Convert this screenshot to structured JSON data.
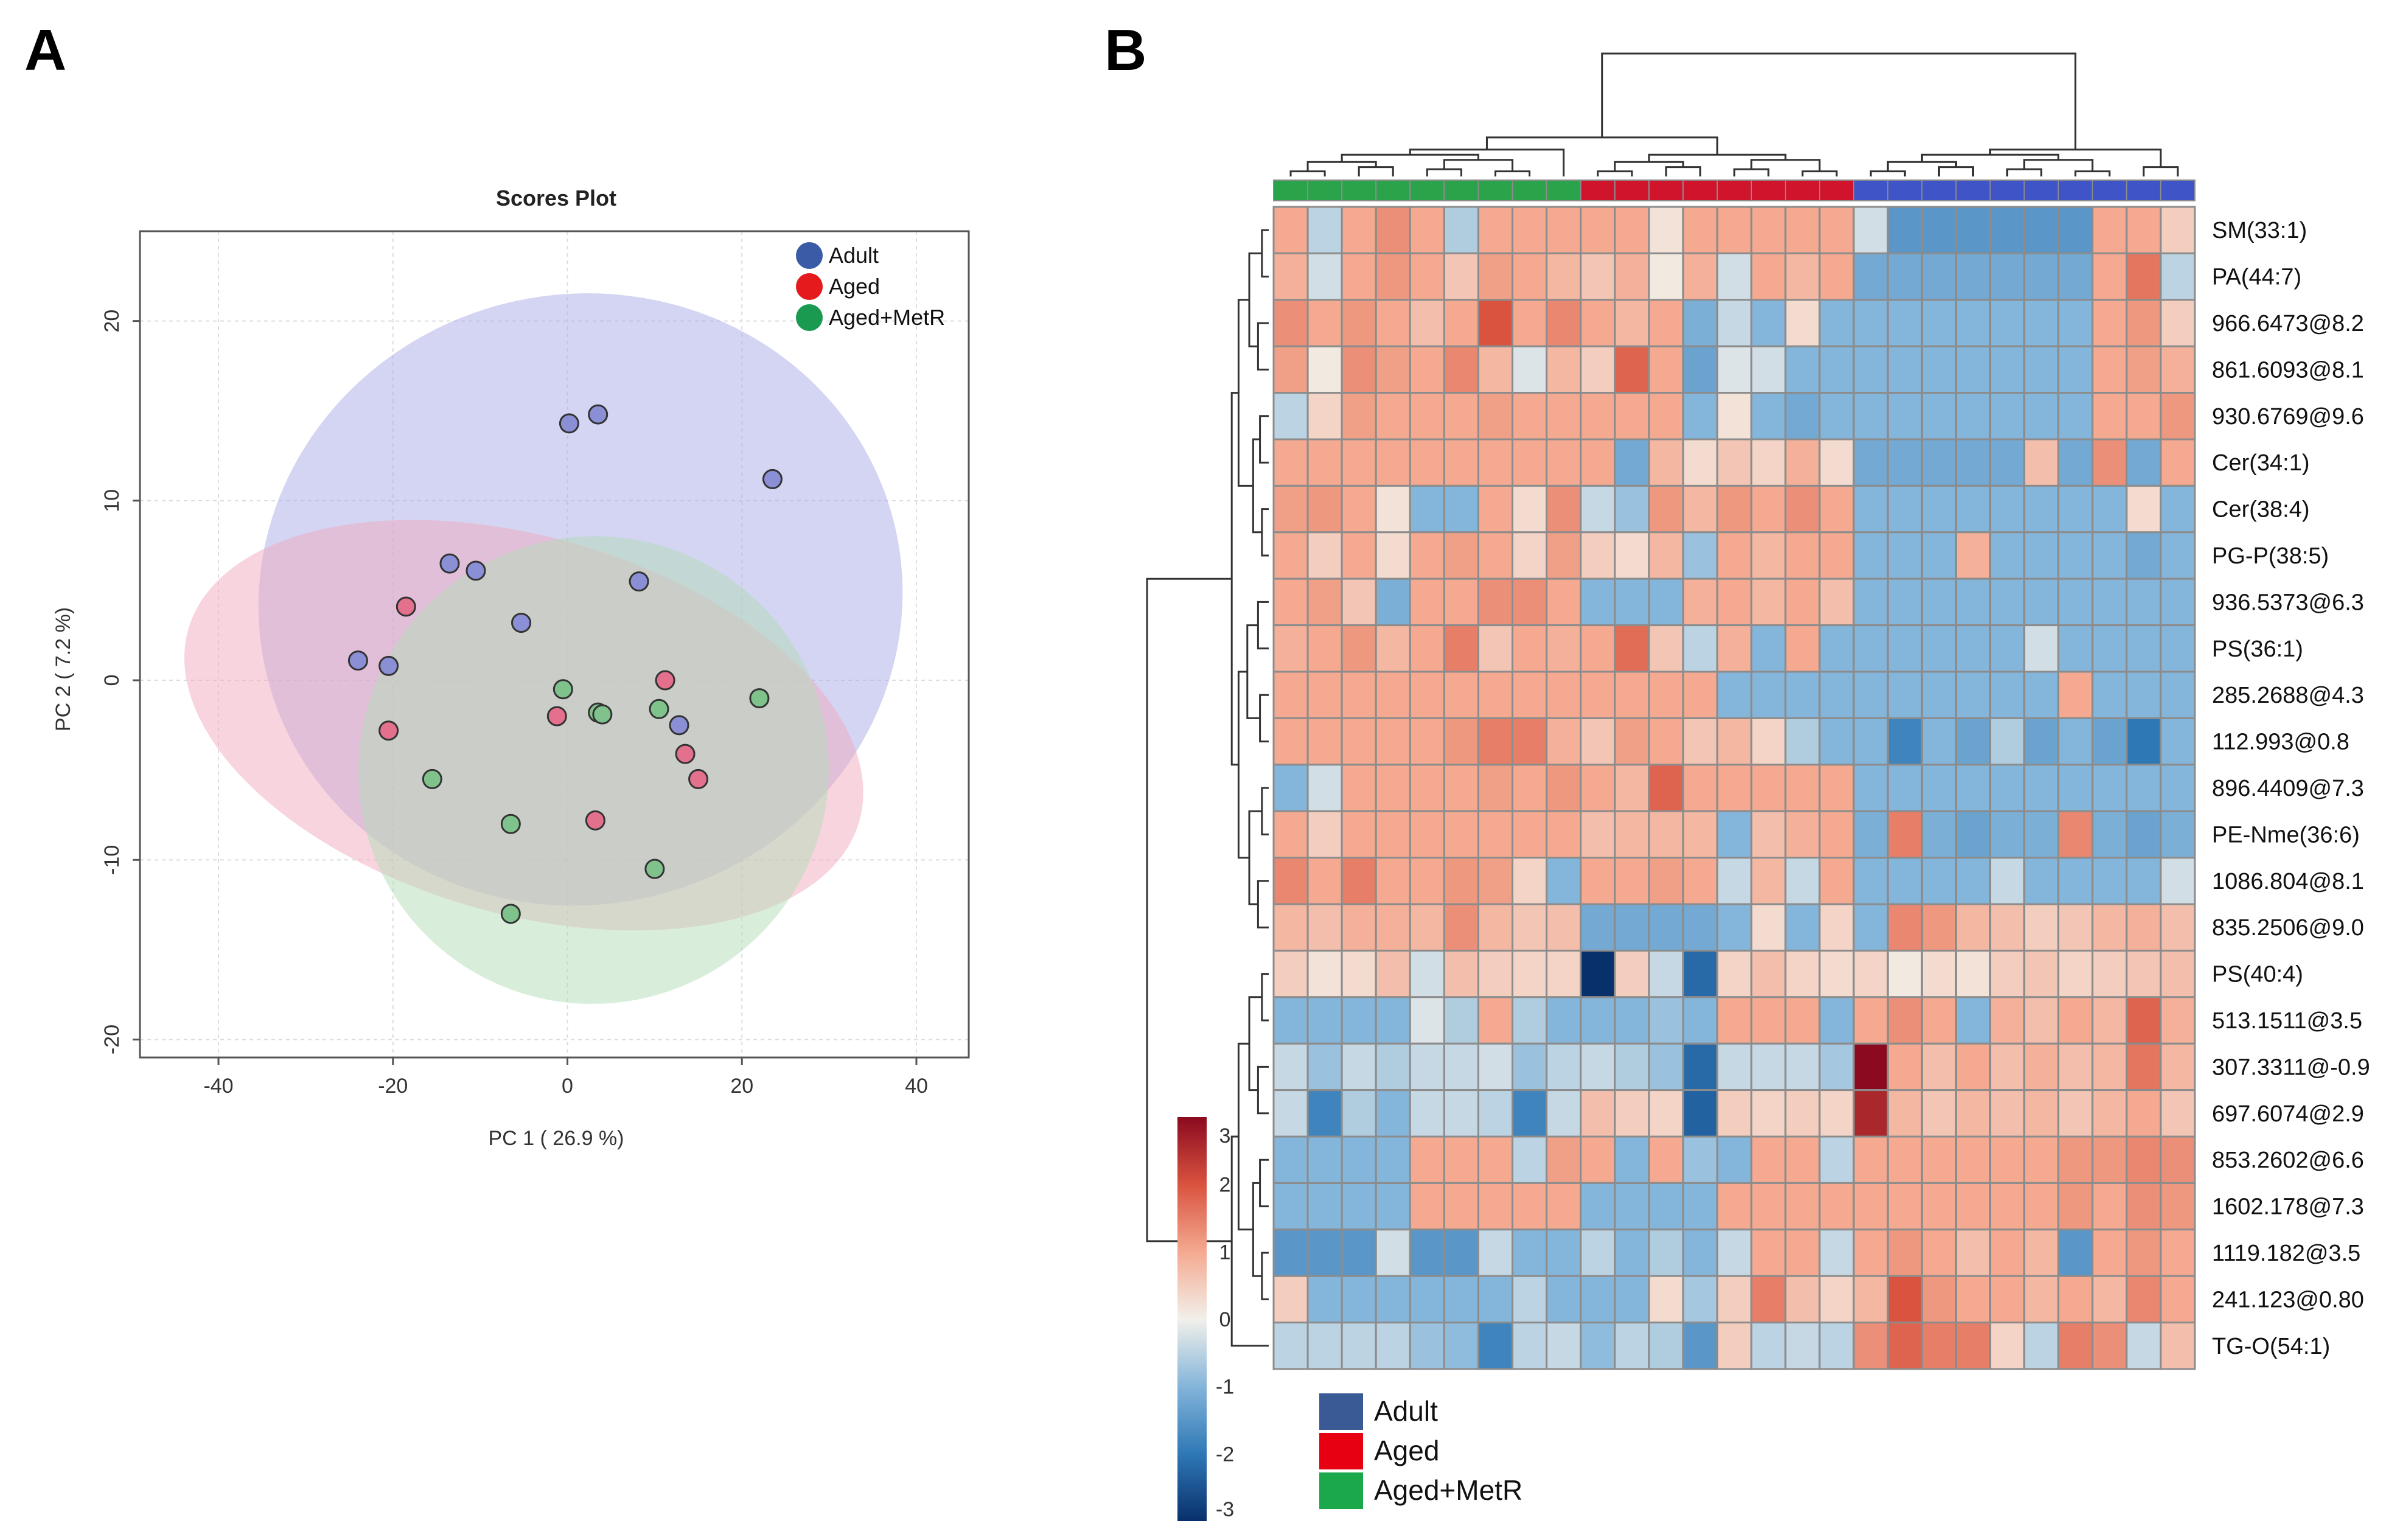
{
  "panels": {
    "a_label": "A",
    "b_label": "B"
  },
  "chart_data": [
    {
      "type": "scatter",
      "title": "Scores Plot",
      "xlabel": "PC 1 ( 26.9 %)",
      "ylabel": "PC 2 ( 7.2 %)",
      "xlim": [
        -49,
        46
      ],
      "ylim": [
        -21,
        25
      ],
      "xticks": [
        -40,
        -20,
        0,
        20,
        40
      ],
      "yticks": [
        -20,
        -10,
        0,
        10,
        20
      ],
      "grid": true,
      "legend_position": "top-right",
      "series": [
        {
          "name": "Adult",
          "color": "#3a5ba5",
          "fill": "#8b8fd6",
          "points": [
            [
              0.2,
              14.3
            ],
            [
              3.5,
              14.8
            ],
            [
              23.5,
              11.2
            ],
            [
              -13.5,
              6.5
            ],
            [
              -10.5,
              6.1
            ],
            [
              8.2,
              5.5
            ],
            [
              -5.3,
              3.2
            ],
            [
              -24,
              1.1
            ],
            [
              -20.5,
              0.8
            ],
            [
              12.8,
              -2.5
            ]
          ]
        },
        {
          "name": "Aged",
          "color": "#e41a1c",
          "fill": "#e3708c",
          "points": [
            [
              -18.5,
              4.1
            ],
            [
              11.2,
              0
            ],
            [
              -1.2,
              -2
            ],
            [
              -20.5,
              -2.8
            ],
            [
              13.5,
              -4.1
            ],
            [
              15,
              -5.5
            ],
            [
              3.2,
              -7.8
            ]
          ]
        },
        {
          "name": "Aged+MetR",
          "color": "#1a9a50",
          "fill": "#80c28c",
          "points": [
            [
              -0.5,
              -0.5
            ],
            [
              3.5,
              -1.8
            ],
            [
              4,
              -1.9
            ],
            [
              10.5,
              -1.6
            ],
            [
              22,
              -1
            ],
            [
              -15.5,
              -5.5
            ],
            [
              -6.5,
              -8
            ],
            [
              10,
              -10.5
            ],
            [
              -6.5,
              -13
            ]
          ]
        }
      ],
      "ellipses": [
        {
          "series": "Adult",
          "center": [
            1.5,
            4.5
          ],
          "rx": 37,
          "ry": 17,
          "angle_deg": 12,
          "fill": "#a8abe6"
        },
        {
          "series": "Aged",
          "center": [
            -5,
            -2.5
          ],
          "rx": 40,
          "ry": 10.5,
          "angle_deg": -16,
          "fill": "#f2a9c0"
        },
        {
          "series": "Aged+MetR",
          "center": [
            3,
            -5
          ],
          "rx": 27,
          "ry": 13,
          "angle_deg": 22,
          "fill": "#b4dcb8"
        }
      ]
    },
    {
      "type": "heatmap",
      "rows": [
        "SM(33:1)",
        "PA(44:7)",
        "966.6473@8.2",
        "861.6093@8.1",
        "930.6769@9.6",
        "Cer(34:1)",
        "Cer(38:4)",
        "PG-P(38:5)",
        "936.5373@6.3",
        "PS(36:1)",
        "285.2688@4.3",
        "112.993@0.8",
        "896.4409@7.3",
        "PE-Nme(36:6)",
        "1086.804@8.1",
        "835.2506@9.0",
        "PS(40:4)",
        "513.1511@3.5",
        "307.3311@-0.9",
        "697.6074@2.9",
        "853.2602@6.6",
        "1602.178@7.3",
        "1119.182@3.5",
        "241.123@0.80",
        "TG-O(54:1)"
      ],
      "column_groups": [
        "Aged+MetR",
        "Aged+MetR",
        "Aged+MetR",
        "Aged+MetR",
        "Aged+MetR",
        "Aged+MetR",
        "Aged+MetR",
        "Aged+MetR",
        "Aged+MetR",
        "Aged",
        "Aged",
        "Aged",
        "Aged",
        "Aged",
        "Aged",
        "Aged",
        "Aged",
        "Adult",
        "Adult",
        "Adult",
        "Adult",
        "Adult",
        "Adult",
        "Adult",
        "Adult",
        "Adult",
        "Adult"
      ],
      "group_colors": {
        "Adult": "#3f54c7",
        "Aged": "#d0142c",
        "Aged+MetR": "#2aa34a"
      },
      "colorbar": {
        "min": -3,
        "max": 3,
        "ticks": [
          "3",
          "2",
          "1",
          "0",
          "-1",
          "-2",
          "-3"
        ]
      },
      "values": [
        [
          1.0,
          -0.5,
          1.0,
          1.3,
          1.0,
          -0.6,
          1.0,
          1.0,
          1.0,
          1.0,
          1.0,
          0.2,
          1.0,
          1.0,
          1.0,
          1.0,
          1.0,
          -0.3,
          -1.5,
          -1.5,
          -1.5,
          -1.5,
          -1.5,
          -1.5,
          1.0,
          1.0,
          0.5
        ],
        [
          0.9,
          -0.3,
          1.0,
          1.2,
          1.0,
          0.6,
          1.1,
          1.0,
          0.8,
          0.6,
          0.9,
          0.1,
          0.9,
          -0.3,
          1.0,
          0.8,
          1.0,
          -1.2,
          -1.2,
          -1.2,
          -1.2,
          -1.2,
          -1.2,
          -1.2,
          1.0,
          1.6,
          -0.5
        ],
        [
          1.3,
          1.0,
          1.2,
          1.0,
          0.7,
          1.0,
          2.0,
          1.0,
          1.4,
          1.0,
          0.8,
          1.0,
          -1.1,
          -0.4,
          -1.0,
          0.3,
          -1.0,
          -1.0,
          -1.0,
          -1.0,
          -1.0,
          -1.0,
          -1.0,
          -1.0,
          1.0,
          1.2,
          0.5
        ],
        [
          1.1,
          0.1,
          1.3,
          1.1,
          1.0,
          1.4,
          0.8,
          -0.2,
          0.8,
          0.5,
          1.8,
          1.0,
          -1.3,
          -0.2,
          -0.3,
          -1.0,
          -1.0,
          -1.0,
          -1.0,
          -1.0,
          -1.0,
          -1.0,
          -1.0,
          -1.0,
          1.0,
          1.1,
          0.9
        ],
        [
          -0.5,
          0.4,
          1.1,
          1.0,
          1.0,
          1.0,
          1.1,
          1.0,
          1.0,
          1.0,
          1.0,
          1.0,
          -1.0,
          0.2,
          -1.0,
          -1.2,
          -1.0,
          -1.0,
          -1.0,
          -1.0,
          -1.0,
          -1.0,
          -1.0,
          -1.0,
          1.0,
          1.0,
          1.2
        ],
        [
          1.0,
          1.0,
          1.0,
          1.0,
          1.0,
          1.0,
          1.0,
          1.0,
          1.0,
          1.0,
          -1.2,
          0.8,
          0.3,
          0.6,
          0.4,
          0.9,
          0.3,
          -1.2,
          -1.2,
          -1.2,
          -1.2,
          -1.2,
          0.7,
          -1.2,
          1.3,
          -1.2,
          1.0
        ],
        [
          1.1,
          1.2,
          1.0,
          0.2,
          -1.0,
          -1.0,
          1.0,
          0.3,
          1.3,
          -0.4,
          -0.8,
          1.2,
          0.8,
          1.2,
          1.0,
          1.3,
          1.0,
          -1.0,
          -1.0,
          -1.0,
          -1.0,
          -1.0,
          -1.0,
          -1.0,
          -1.0,
          0.3,
          -1.0
        ],
        [
          1.0,
          0.5,
          1.0,
          0.3,
          1.0,
          1.1,
          1.0,
          0.4,
          1.1,
          0.5,
          0.3,
          0.8,
          -0.8,
          1.0,
          0.8,
          1.0,
          1.0,
          -1.0,
          -1.0,
          -1.0,
          0.9,
          -1.0,
          -1.0,
          -1.0,
          -1.0,
          -1.2,
          -1.0
        ],
        [
          1.0,
          1.1,
          0.6,
          -1.1,
          1.0,
          1.0,
          1.3,
          1.3,
          1.0,
          -1.0,
          -1.0,
          -1.0,
          0.9,
          1.0,
          0.8,
          1.0,
          0.7,
          -1.0,
          -1.0,
          -1.0,
          -1.0,
          -1.0,
          -1.0,
          -1.0,
          -1.0,
          -1.0,
          -1.0
        ],
        [
          0.9,
          1.0,
          1.2,
          0.8,
          1.0,
          1.5,
          0.6,
          1.0,
          0.9,
          1.0,
          1.7,
          0.6,
          -0.5,
          0.9,
          -1.0,
          1.0,
          -1.0,
          -1.0,
          -1.0,
          -1.0,
          -1.0,
          -1.0,
          -0.3,
          -1.0,
          -1.0,
          -1.0,
          -1.0
        ],
        [
          1.0,
          1.0,
          1.0,
          1.0,
          1.0,
          1.0,
          1.0,
          1.0,
          1.0,
          1.0,
          1.0,
          1.0,
          1.0,
          -1.0,
          -1.0,
          -1.0,
          -1.0,
          -1.0,
          -1.0,
          -1.0,
          -1.0,
          -1.0,
          -1.0,
          1.0,
          -1.0,
          -1.0,
          -1.0
        ],
        [
          1.0,
          1.0,
          1.0,
          1.0,
          1.0,
          1.2,
          1.5,
          1.5,
          0.9,
          0.6,
          1.1,
          1.0,
          0.6,
          0.8,
          0.4,
          -0.6,
          -1.0,
          -1.0,
          -1.8,
          -1.0,
          -1.3,
          -0.6,
          -1.3,
          -1.0,
          -1.3,
          -2.0,
          -1.0
        ],
        [
          -1.0,
          -0.3,
          1.0,
          1.0,
          1.0,
          1.0,
          1.1,
          1.0,
          1.2,
          1.0,
          0.8,
          1.8,
          1.0,
          1.0,
          1.0,
          1.0,
          1.0,
          -1.0,
          -1.0,
          -1.0,
          -1.0,
          -1.0,
          -1.0,
          -1.0,
          -1.0,
          -1.0,
          -1.0
        ],
        [
          1.0,
          0.5,
          1.0,
          1.0,
          1.0,
          1.0,
          1.0,
          1.0,
          1.0,
          0.7,
          0.8,
          0.8,
          0.8,
          -1.0,
          0.7,
          0.9,
          1.0,
          -1.1,
          1.5,
          -1.1,
          -1.3,
          -1.1,
          -1.1,
          1.4,
          -1.1,
          -1.3,
          -1.1
        ],
        [
          1.4,
          1.0,
          1.5,
          1.0,
          1.0,
          1.2,
          1.1,
          0.4,
          -1.0,
          1.0,
          1.0,
          1.1,
          1.0,
          -0.4,
          0.8,
          -0.4,
          1.0,
          -1.0,
          -1.0,
          -1.0,
          -1.0,
          -0.4,
          -1.0,
          -1.0,
          -1.0,
          -1.0,
          -0.3
        ],
        [
          0.8,
          0.7,
          0.9,
          0.9,
          0.8,
          1.3,
          0.8,
          0.6,
          0.7,
          -1.2,
          -1.2,
          -1.2,
          -1.2,
          -1.0,
          0.3,
          -1.0,
          0.4,
          -1.0,
          1.4,
          1.2,
          0.8,
          0.7,
          0.5,
          0.6,
          0.8,
          0.9,
          0.7
        ],
        [
          0.5,
          0.2,
          0.3,
          0.7,
          -0.3,
          0.7,
          0.5,
          0.4,
          0.4,
          -3.5,
          0.5,
          -0.4,
          -2.2,
          0.4,
          0.7,
          0.4,
          0.3,
          0.4,
          0.1,
          0.3,
          0.2,
          0.5,
          0.6,
          0.4,
          0.5,
          0.6,
          0.7
        ],
        [
          -1.0,
          -1.0,
          -1.0,
          -1.0,
          -0.2,
          -0.6,
          1.0,
          -0.6,
          -1.0,
          -1.0,
          -1.0,
          -0.8,
          -1.0,
          1.0,
          1.0,
          1.0,
          -1.0,
          1.0,
          1.3,
          1.0,
          -1.0,
          0.9,
          0.7,
          1.0,
          0.8,
          1.8,
          0.9
        ],
        [
          -0.4,
          -0.8,
          -0.4,
          -0.6,
          -0.4,
          -0.4,
          -0.3,
          -0.8,
          -0.5,
          -0.4,
          -0.6,
          -0.8,
          -2.2,
          -0.4,
          -0.4,
          -0.4,
          -0.7,
          3.2,
          1.0,
          0.7,
          1.0,
          0.7,
          0.9,
          0.7,
          0.8,
          1.6,
          0.8
        ],
        [
          -0.4,
          -1.8,
          -0.6,
          -1.0,
          -0.4,
          -0.4,
          -0.5,
          -1.8,
          -0.4,
          0.7,
          0.5,
          0.4,
          -2.3,
          0.5,
          0.4,
          0.5,
          0.4,
          2.6,
          0.8,
          0.6,
          0.8,
          0.7,
          0.8,
          0.6,
          0.8,
          1.0,
          0.6
        ],
        [
          -1.0,
          -1.0,
          -1.0,
          -1.0,
          1.0,
          1.0,
          1.0,
          -0.5,
          1.1,
          1.0,
          -1.0,
          1.0,
          -0.8,
          -1.0,
          1.0,
          1.0,
          -0.5,
          1.0,
          1.0,
          1.0,
          1.0,
          1.0,
          1.0,
          1.2,
          1.2,
          1.4,
          1.3
        ],
        [
          -1.0,
          -1.0,
          -1.0,
          -1.0,
          1.0,
          1.0,
          1.0,
          1.0,
          1.0,
          -1.0,
          -1.0,
          -1.0,
          -1.0,
          1.0,
          1.0,
          1.0,
          1.0,
          1.0,
          1.0,
          1.0,
          1.0,
          1.0,
          1.0,
          1.2,
          1.0,
          1.3,
          1.2
        ],
        [
          -1.5,
          -1.5,
          -1.5,
          -0.3,
          -1.5,
          -1.5,
          -0.4,
          -1.0,
          -1.0,
          -0.5,
          -1.0,
          -0.6,
          -1.0,
          -0.4,
          1.0,
          1.0,
          -0.4,
          1.0,
          1.2,
          1.0,
          0.7,
          1.0,
          0.8,
          -1.5,
          1.0,
          1.2,
          1.0
        ],
        [
          0.5,
          -1.0,
          -1.0,
          -1.0,
          -1.0,
          -1.0,
          -1.0,
          -0.5,
          -1.0,
          -1.0,
          -1.0,
          0.3,
          -0.7,
          0.5,
          1.5,
          0.7,
          0.4,
          0.8,
          2.0,
          1.2,
          1.0,
          1.0,
          0.8,
          1.0,
          0.8,
          1.4,
          1.0
        ],
        [
          -0.5,
          -0.5,
          -0.5,
          -0.5,
          -0.8,
          -0.9,
          -1.8,
          -0.5,
          -0.4,
          -0.9,
          -0.5,
          -0.6,
          -1.5,
          0.5,
          -0.5,
          -0.4,
          -0.5,
          1.3,
          1.8,
          1.5,
          1.5,
          0.4,
          -0.5,
          1.5,
          1.3,
          -0.4,
          0.7
        ]
      ]
    }
  ],
  "group_legend": [
    {
      "label": "Adult",
      "color": "#3a5a95"
    },
    {
      "label": "Aged",
      "color": "#e60012"
    },
    {
      "label": "Aged+MetR",
      "color": "#1aa84a"
    }
  ]
}
